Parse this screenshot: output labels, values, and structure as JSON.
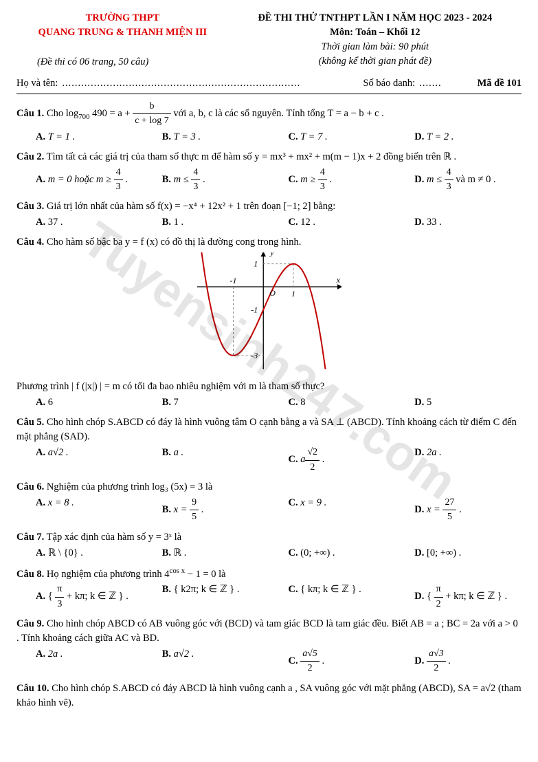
{
  "watermark": "Tuyensinh247.com",
  "header": {
    "school_label": "TRƯỜNG THPT",
    "school_names": "QUANG TRUNG & THANH MIỆN III",
    "exam_title": "ĐỀ THI THỬ TNTHPT LẦN I NĂM HỌC 2023 - 2024",
    "subject": "Môn: Toán – Khối 12",
    "duration": "Thời gian làm bài: 90 phút",
    "no_delivery": "(không kể thời gian phát đề)",
    "pages_note": "(Đề thi có 06 trang, 50 câu)",
    "name_label": "Họ và tên:",
    "name_dots": "...........................................................................",
    "sbd_label": "Số báo danh:",
    "sbd_dots": ".......",
    "code_label": "Mã đề 101"
  },
  "q1": {
    "num": "Câu 1.",
    "pre": " Cho  log",
    "sub": "700",
    "mid": " 490 = a + ",
    "frac_n": "b",
    "frac_d": "c + log 7",
    "post": "  với  a, b, c  là các số nguyên. Tính tổng  T = a − b + c .",
    "A": "T = 1 .",
    "B": "T = 3 .",
    "C": "T = 7 .",
    "D": "T = 2 ."
  },
  "q2": {
    "num": "Câu 2.",
    "text": " Tìm tất cả các giá trị của tham số thực  m  để hàm số  y = mx³ + mx² + m(m − 1)x + 2  đồng biến trên  ℝ .",
    "A_pre": "m = 0  hoặc  m ≥ ",
    "A_n": "4",
    "A_d": "3",
    "B_pre": "m ≤ ",
    "B_n": "4",
    "B_d": "3",
    "C_pre": "m ≥ ",
    "C_n": "4",
    "C_d": "3",
    "D_pre": "m ≤ ",
    "D_n": "4",
    "D_d": "3",
    "D_post": " và  m ≠ 0 ."
  },
  "q3": {
    "num": "Câu 3.",
    "text": " Giá trị lớn nhất của hàm số  f(x) = −x⁴ + 12x² + 1  trên đoạn  [−1; 2] bằng:",
    "A": "37 .",
    "B": "1 .",
    "C": "12 .",
    "D": "33 ."
  },
  "q4": {
    "num": "Câu 4.",
    "text1": " Cho hàm số bậc ba  y = f (x)  có đồ thị là đường cong trong hình.",
    "text2": "Phương trình  | f (|x|) | = m  có tối đa bao nhiêu nghiệm với  m  là tham số thực?",
    "A": "6",
    "B": "7",
    "C": "8",
    "D": "5",
    "graph": {
      "color": "#c00000",
      "axis_color": "#000000",
      "dash_color": "#888888",
      "x_ticks": [
        "-1",
        "1"
      ],
      "y_ticks": [
        "1",
        "-1",
        "-3"
      ],
      "xlabel": "x",
      "ylabel": "y",
      "origin": "O",
      "xlim": [
        -2.2,
        2.6
      ],
      "ylim": [
        -3.6,
        1.5
      ]
    }
  },
  "q5": {
    "num": "Câu 5.",
    "text": " Cho hình chóp  S.ABCD  có đáy là hình vuông tâm   O cạnh bằng  a  và  SA ⊥ (ABCD). Tính khoảng cách từ điểm C đến mặt phẳng  (SAD).",
    "A": "a√2 .",
    "B": "a .",
    "C_pre": "a",
    "C_n": "√2",
    "C_d": "2",
    "D": "2a ."
  },
  "q6": {
    "num": "Câu 6.",
    "text": " Nghiệm của phương trình  log₃ (5x) = 3  là",
    "A": "x = 8 .",
    "B_pre": "x = ",
    "B_n": "9",
    "B_d": "5",
    "C": "x = 9 .",
    "D_pre": "x = ",
    "D_n": "27",
    "D_d": "5"
  },
  "q7": {
    "num": "Câu 7.",
    "text": " Tập xác định của hàm số  y = 3ˣ  là",
    "A": "ℝ \\ {0} .",
    "B": "ℝ .",
    "C": "(0; +∞) .",
    "D": "[0; +∞) ."
  },
  "q8": {
    "num": "Câu 8.",
    "text_pre": " Họ nghiệm của phương trình  4",
    "sup": "cos x",
    "text_post": " − 1 = 0  là",
    "A_pre": "{ ",
    "A_n": "π",
    "A_d": "3",
    "A_post": " + kπ; k ∈ ℤ } .",
    "B": "{ k2π; k ∈ ℤ } .",
    "C": "{ kπ; k ∈ ℤ } .",
    "D_pre": "{ ",
    "D_n": "π",
    "D_d": "2",
    "D_post": " + kπ; k ∈ ℤ } ."
  },
  "q9": {
    "num": "Câu 9.",
    "text": " Cho hình chóp  ABCD có  AB  vuông góc với  (BCD) và tam giác  BCD  là tam giác đều. Biết AB = a ;  BC = 2a  với  a > 0 . Tính khoảng cách giữa  AC và  BD.",
    "A": "2a .",
    "B": "a√2 .",
    "C_n": "a√5",
    "C_d": "2",
    "D_n": "a√3",
    "D_d": "2"
  },
  "q10": {
    "num": "Câu 10.",
    "text": " Cho hình chóp  S.ABCD  có đáy  ABCD  là hình vuông cạnh  a ,  SA  vuông góc với mặt phẳng (ABCD),  SA = a√2  (tham khảo hình vẽ)."
  },
  "labels": {
    "A": "A.",
    "B": "B.",
    "C": "C.",
    "D": "D."
  }
}
